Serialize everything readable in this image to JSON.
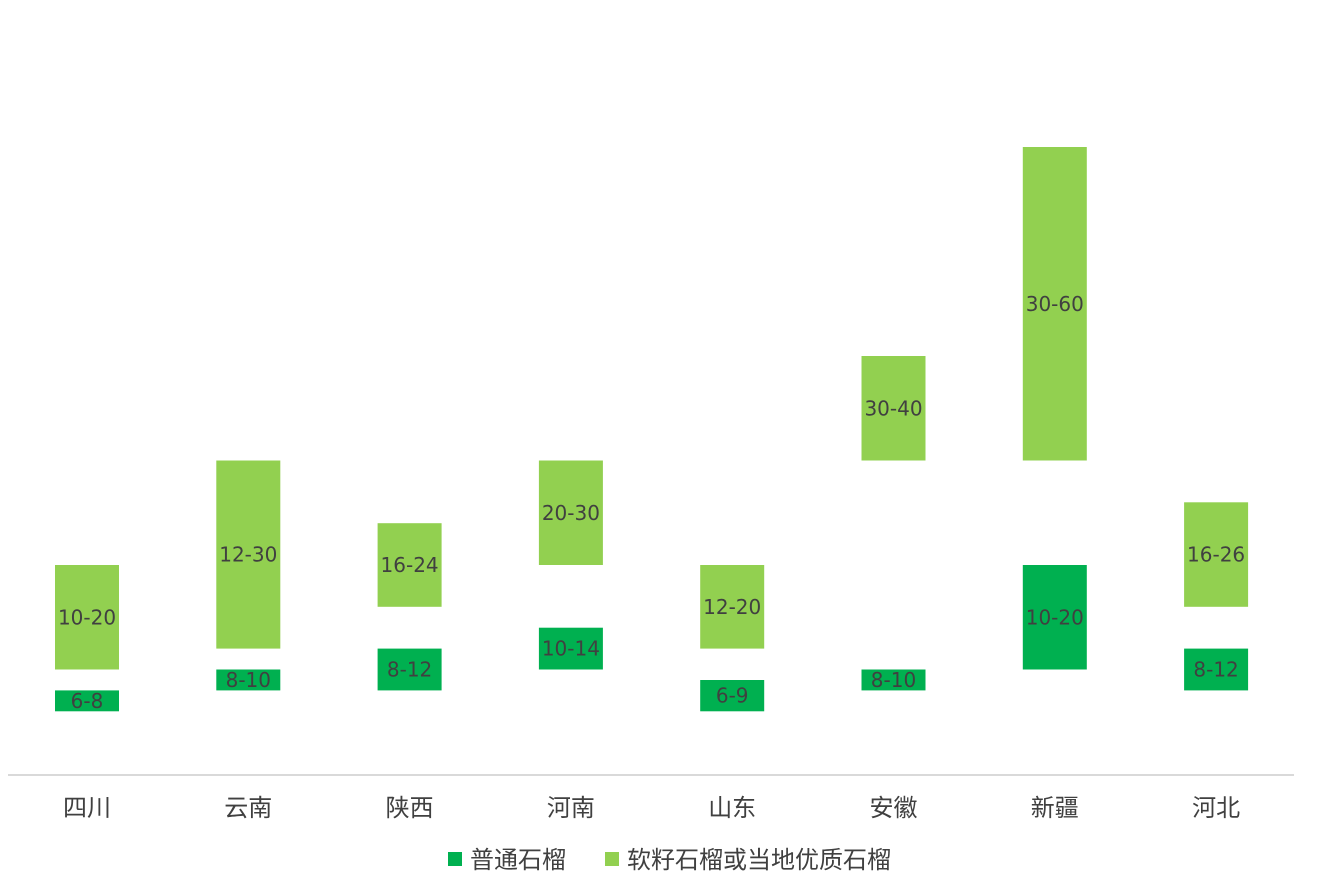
{
  "chart_data": {
    "type": "bar",
    "subtype": "floating-range",
    "categories": [
      "四川",
      "云南",
      "陕西",
      "河南",
      "山东",
      "安徽",
      "新疆",
      "河北"
    ],
    "ylim": [
      0,
      64
    ],
    "grid": false,
    "legend_position": "bottom",
    "series": [
      {
        "name": "普通石榴",
        "color": "#00B050",
        "ranges": [
          [
            6,
            8
          ],
          [
            8,
            10
          ],
          [
            8,
            12
          ],
          [
            10,
            14
          ],
          [
            6,
            9
          ],
          [
            8,
            10
          ],
          [
            10,
            20
          ],
          [
            8,
            12
          ]
        ],
        "labels": [
          "6-8",
          "8-10",
          "8-12",
          "10-14",
          "6-9",
          "8-10",
          "10-20",
          "8-12"
        ]
      },
      {
        "name": "软籽石榴或当地优质石榴",
        "color": "#92D050",
        "ranges": [
          [
            10,
            20
          ],
          [
            12,
            30
          ],
          [
            16,
            24
          ],
          [
            20,
            30
          ],
          [
            12,
            20
          ],
          [
            30,
            40
          ],
          [
            30,
            60
          ],
          [
            16,
            26
          ]
        ],
        "labels": [
          "10-20",
          "12-30",
          "16-24",
          "20-30",
          "12-20",
          "30-40",
          "30-60",
          "16-26"
        ]
      }
    ]
  }
}
